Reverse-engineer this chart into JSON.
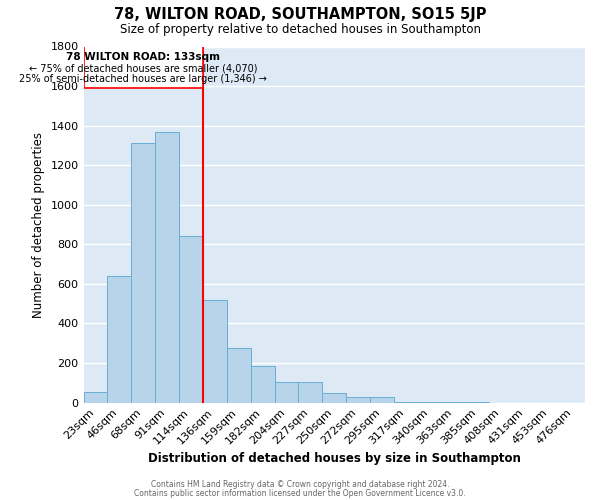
{
  "title": "78, WILTON ROAD, SOUTHAMPTON, SO15 5JP",
  "subtitle": "Size of property relative to detached houses in Southampton",
  "xlabel": "Distribution of detached houses by size in Southampton",
  "ylabel": "Number of detached properties",
  "bar_color": "#b8d4ea",
  "bar_edge_color": "#6aaed6",
  "background_color": "#ddeaf5",
  "grid_color": "#ffffff",
  "annotation_title": "78 WILTON ROAD: 133sqm",
  "annotation_line1": "← 75% of detached houses are smaller (4,070)",
  "annotation_line2": "25% of semi-detached houses are larger (1,346) →",
  "footer1": "Contains HM Land Registry data © Crown copyright and database right 2024.",
  "footer2": "Contains public sector information licensed under the Open Government Licence v3.0.",
  "categories": [
    "23sqm",
    "46sqm",
    "68sqm",
    "91sqm",
    "114sqm",
    "136sqm",
    "159sqm",
    "182sqm",
    "204sqm",
    "227sqm",
    "250sqm",
    "272sqm",
    "295sqm",
    "317sqm",
    "340sqm",
    "363sqm",
    "385sqm",
    "408sqm",
    "431sqm",
    "453sqm",
    "476sqm"
  ],
  "values": [
    52,
    640,
    1310,
    1370,
    840,
    520,
    275,
    185,
    105,
    105,
    50,
    30,
    28,
    5,
    2,
    1,
    1,
    0,
    0,
    0,
    0
  ],
  "ylim": [
    0,
    1800
  ],
  "yticks": [
    0,
    200,
    400,
    600,
    800,
    1000,
    1200,
    1400,
    1600,
    1800
  ],
  "red_line_bin_index": 5
}
